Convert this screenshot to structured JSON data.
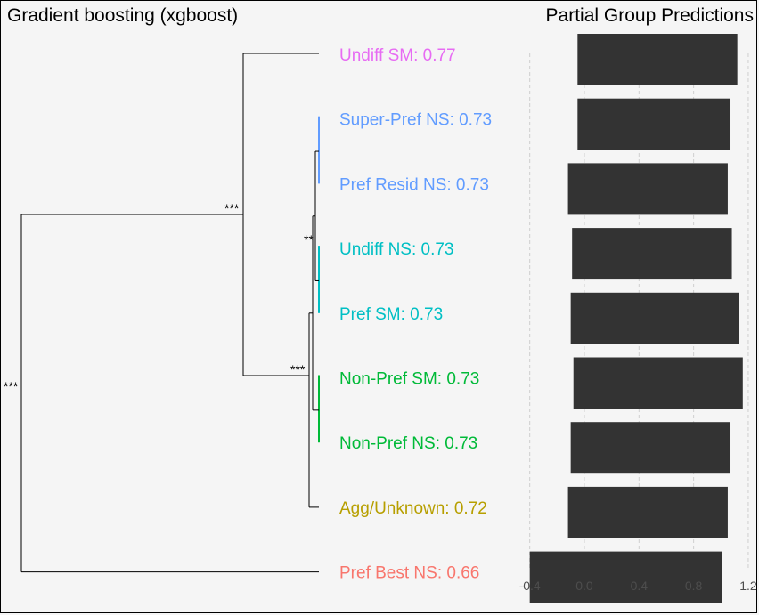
{
  "titles": {
    "left": "Gradient boosting (xgboost)",
    "right": "Partial Group Predictions"
  },
  "chart_data": [
    {
      "type": "dendrogram",
      "title": "Gradient boosting (xgboost)",
      "leaves": [
        {
          "label": "Undiff SM: 0.77",
          "color": "#e76bf3"
        },
        {
          "label": "Super-Pref NS: 0.73",
          "color": "#619cff"
        },
        {
          "label": "Pref Resid NS: 0.73",
          "color": "#619cff"
        },
        {
          "label": "Undiff NS: 0.73",
          "color": "#00bfc4"
        },
        {
          "label": "Pref SM: 0.73",
          "color": "#00bfc4"
        },
        {
          "label": "Non-Pref SM: 0.73",
          "color": "#00ba38"
        },
        {
          "label": "Non-Pref NS: 0.73",
          "color": "#00ba38"
        },
        {
          "label": "Agg/Unknown: 0.72",
          "color": "#b79f00"
        },
        {
          "label": "Pref Best NS: 0.66",
          "color": "#f8766d"
        }
      ],
      "significance_labels": [
        "***",
        "***",
        "**",
        "***"
      ]
    },
    {
      "type": "bar",
      "orientation": "horizontal",
      "title": "Partial Group Predictions",
      "categories": [
        "Undiff SM",
        "Super-Pref NS",
        "Pref Resid NS",
        "Undiff NS",
        "Pref SM",
        "Non-Pref SM",
        "Non-Pref NS",
        "Agg/Unknown",
        "Pref Best NS"
      ],
      "series": [
        {
          "low": [
            -0.05,
            -0.05,
            -0.12,
            -0.09,
            -0.1,
            -0.08,
            -0.1,
            -0.12,
            -0.4
          ],
          "high": [
            1.12,
            1.07,
            1.05,
            1.08,
            1.13,
            1.16,
            1.07,
            1.05,
            1.01
          ]
        }
      ],
      "xlim": [
        -0.45,
        1.22
      ],
      "xticks": [
        "-0.4",
        "0.0",
        "0.4",
        "0.8",
        "1.2"
      ],
      "xtick_values": [
        -0.4,
        0.0,
        0.4,
        0.8,
        1.2
      ],
      "grid": "vertical dashed",
      "bar_color": "#333333"
    }
  ]
}
